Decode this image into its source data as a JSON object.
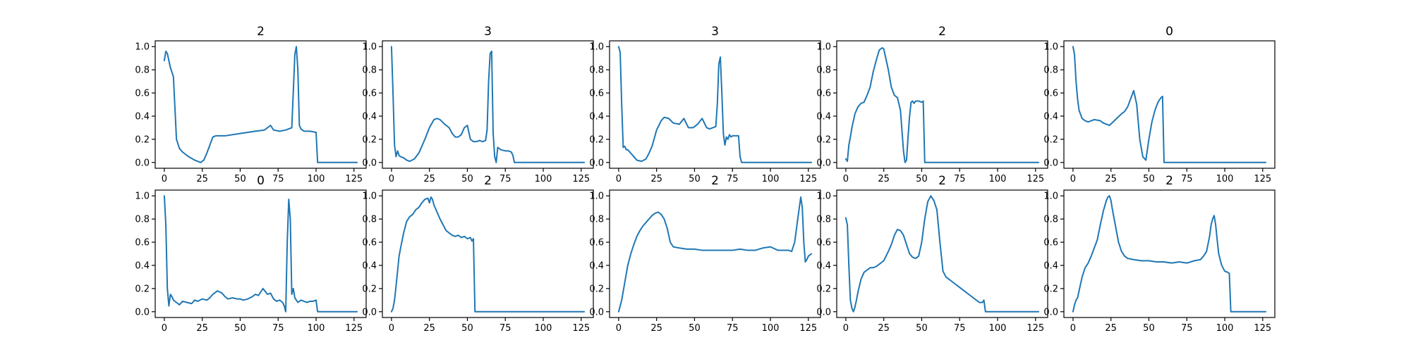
{
  "figure": {
    "line_color": "#1f77b4"
  },
  "chart_data": [
    {
      "type": "line",
      "title": "2",
      "xlim": [
        -6,
        133
      ],
      "ylim": [
        -0.05,
        1.05
      ],
      "xticks": [
        0,
        25,
        50,
        75,
        100,
        125
      ],
      "yticks": [
        0.0,
        0.2,
        0.4,
        0.6,
        0.8,
        1.0
      ],
      "x": [
        0,
        1,
        2,
        4,
        6,
        8,
        10,
        12,
        14,
        16,
        20,
        24,
        26,
        28,
        30,
        32,
        34,
        40,
        50,
        60,
        66,
        70,
        72,
        76,
        80,
        84,
        86,
        87,
        88,
        89,
        90,
        92,
        96,
        100,
        101,
        102,
        127
      ],
      "y": [
        0.88,
        0.96,
        0.94,
        0.82,
        0.74,
        0.2,
        0.12,
        0.09,
        0.07,
        0.05,
        0.02,
        0.0,
        0.02,
        0.08,
        0.15,
        0.22,
        0.23,
        0.23,
        0.25,
        0.27,
        0.28,
        0.32,
        0.28,
        0.27,
        0.28,
        0.3,
        0.93,
        1.0,
        0.8,
        0.32,
        0.29,
        0.27,
        0.27,
        0.26,
        0.0,
        0.0,
        0.0
      ]
    },
    {
      "type": "line",
      "title": "3",
      "xlim": [
        -6,
        133
      ],
      "ylim": [
        -0.05,
        1.05
      ],
      "xticks": [
        0,
        25,
        50,
        75,
        100,
        125
      ],
      "yticks": [
        0.0,
        0.2,
        0.4,
        0.6,
        0.8,
        1.0
      ],
      "x": [
        0,
        1,
        2,
        3,
        4,
        5,
        6,
        8,
        10,
        12,
        15,
        18,
        20,
        22,
        25,
        28,
        30,
        32,
        35,
        38,
        40,
        42,
        44,
        46,
        48,
        50,
        52,
        54,
        56,
        58,
        60,
        62,
        63,
        64,
        65,
        66,
        67,
        68,
        69,
        70,
        72,
        75,
        77,
        79,
        80,
        81,
        127
      ],
      "y": [
        1.0,
        0.6,
        0.15,
        0.05,
        0.1,
        0.06,
        0.05,
        0.04,
        0.02,
        0.01,
        0.03,
        0.08,
        0.14,
        0.2,
        0.3,
        0.37,
        0.38,
        0.37,
        0.33,
        0.3,
        0.25,
        0.22,
        0.22,
        0.24,
        0.3,
        0.32,
        0.2,
        0.18,
        0.18,
        0.19,
        0.18,
        0.19,
        0.28,
        0.7,
        0.94,
        0.96,
        0.25,
        0.05,
        0.0,
        0.13,
        0.11,
        0.1,
        0.1,
        0.09,
        0.06,
        0.0,
        0.0
      ]
    },
    {
      "type": "line",
      "title": "3",
      "xlim": [
        -6,
        133
      ],
      "ylim": [
        -0.05,
        1.05
      ],
      "xticks": [
        0,
        25,
        50,
        75,
        100,
        125
      ],
      "yticks": [
        0.0,
        0.2,
        0.4,
        0.6,
        0.8,
        1.0
      ],
      "x": [
        0,
        1,
        2,
        3,
        4,
        5,
        6,
        8,
        10,
        12,
        15,
        18,
        20,
        22,
        25,
        28,
        30,
        33,
        36,
        40,
        43,
        46,
        49,
        52,
        55,
        58,
        60,
        62,
        64,
        65,
        66,
        67,
        68,
        69,
        70,
        71,
        72,
        73,
        74,
        75,
        76,
        79,
        80,
        81,
        127
      ],
      "y": [
        1.0,
        0.95,
        0.5,
        0.13,
        0.14,
        0.11,
        0.11,
        0.08,
        0.05,
        0.02,
        0.01,
        0.03,
        0.08,
        0.14,
        0.28,
        0.36,
        0.39,
        0.38,
        0.34,
        0.33,
        0.38,
        0.3,
        0.3,
        0.33,
        0.38,
        0.3,
        0.29,
        0.3,
        0.31,
        0.5,
        0.85,
        0.91,
        0.6,
        0.25,
        0.15,
        0.22,
        0.2,
        0.24,
        0.22,
        0.23,
        0.23,
        0.23,
        0.05,
        0.0,
        0.0
      ]
    },
    {
      "type": "line",
      "title": "2",
      "xlim": [
        -6,
        133
      ],
      "ylim": [
        -0.05,
        1.05
      ],
      "xticks": [
        0,
        25,
        50,
        75,
        100,
        125
      ],
      "yticks": [
        0.0,
        0.2,
        0.4,
        0.6,
        0.8,
        1.0
      ],
      "x": [
        0,
        1,
        2,
        3,
        4,
        6,
        8,
        10,
        12,
        14,
        16,
        18,
        20,
        22,
        24,
        25,
        26,
        28,
        30,
        32,
        34,
        36,
        38,
        39,
        40,
        41,
        42,
        43,
        44,
        45,
        46,
        48,
        50,
        51,
        52,
        127
      ],
      "y": [
        0.03,
        0.01,
        0.15,
        0.22,
        0.3,
        0.42,
        0.48,
        0.51,
        0.52,
        0.58,
        0.65,
        0.78,
        0.88,
        0.97,
        0.99,
        0.98,
        0.92,
        0.8,
        0.65,
        0.58,
        0.56,
        0.45,
        0.1,
        0.0,
        0.02,
        0.22,
        0.4,
        0.52,
        0.53,
        0.51,
        0.53,
        0.53,
        0.52,
        0.53,
        0.0,
        0.0
      ]
    },
    {
      "type": "line",
      "title": "0",
      "xlim": [
        -6,
        133
      ],
      "ylim": [
        -0.05,
        1.05
      ],
      "xticks": [
        0,
        25,
        50,
        75,
        100,
        125
      ],
      "yticks": [
        0.0,
        0.2,
        0.4,
        0.6,
        0.8,
        1.0
      ],
      "x": [
        0,
        1,
        2,
        3,
        4,
        6,
        8,
        10,
        14,
        18,
        20,
        24,
        28,
        32,
        34,
        36,
        38,
        40,
        42,
        43,
        44,
        46,
        48,
        50,
        52,
        54,
        56,
        58,
        59,
        60,
        127
      ],
      "y": [
        1.0,
        0.93,
        0.7,
        0.55,
        0.45,
        0.38,
        0.36,
        0.35,
        0.37,
        0.36,
        0.34,
        0.32,
        0.37,
        0.42,
        0.44,
        0.48,
        0.55,
        0.62,
        0.5,
        0.35,
        0.2,
        0.05,
        0.02,
        0.2,
        0.35,
        0.45,
        0.52,
        0.56,
        0.57,
        0.0,
        0.0
      ]
    },
    {
      "type": "line",
      "title": "0",
      "xlim": [
        -6,
        133
      ],
      "ylim": [
        -0.05,
        1.05
      ],
      "xticks": [
        0,
        25,
        50,
        75,
        100,
        125
      ],
      "yticks": [
        0.0,
        0.2,
        0.4,
        0.6,
        0.8,
        1.0
      ],
      "x": [
        0,
        1,
        2,
        3,
        4,
        5,
        6,
        8,
        10,
        12,
        15,
        18,
        20,
        22,
        25,
        28,
        30,
        32,
        35,
        38,
        40,
        42,
        45,
        48,
        50,
        52,
        55,
        58,
        60,
        62,
        65,
        68,
        70,
        72,
        74,
        76,
        78,
        79,
        80,
        81,
        82,
        83,
        84,
        85,
        86,
        88,
        90,
        92,
        94,
        96,
        98,
        100,
        101,
        102,
        127
      ],
      "y": [
        1.0,
        0.75,
        0.2,
        0.05,
        0.15,
        0.13,
        0.1,
        0.08,
        0.06,
        0.09,
        0.08,
        0.07,
        0.1,
        0.09,
        0.11,
        0.1,
        0.12,
        0.15,
        0.18,
        0.16,
        0.13,
        0.11,
        0.12,
        0.11,
        0.11,
        0.1,
        0.11,
        0.13,
        0.15,
        0.14,
        0.2,
        0.15,
        0.16,
        0.11,
        0.09,
        0.1,
        0.08,
        0.05,
        0.0,
        0.6,
        0.97,
        0.8,
        0.15,
        0.2,
        0.12,
        0.08,
        0.1,
        0.09,
        0.08,
        0.09,
        0.09,
        0.1,
        0.0,
        0.0,
        0.0
      ]
    },
    {
      "type": "line",
      "title": "2",
      "xlim": [
        -6,
        133
      ],
      "ylim": [
        -0.05,
        1.05
      ],
      "xticks": [
        0,
        25,
        50,
        75,
        100,
        125
      ],
      "yticks": [
        0.0,
        0.2,
        0.4,
        0.6,
        0.8,
        1.0
      ],
      "x": [
        0,
        1,
        2,
        3,
        4,
        5,
        6,
        8,
        10,
        12,
        14,
        16,
        18,
        20,
        22,
        24,
        25,
        26,
        27,
        28,
        30,
        32,
        34,
        36,
        38,
        40,
        42,
        44,
        46,
        48,
        50,
        52,
        53,
        54,
        55,
        127
      ],
      "y": [
        0.0,
        0.03,
        0.1,
        0.22,
        0.35,
        0.48,
        0.55,
        0.68,
        0.78,
        0.82,
        0.84,
        0.88,
        0.9,
        0.94,
        0.97,
        0.98,
        0.94,
        0.99,
        0.97,
        0.92,
        0.86,
        0.8,
        0.75,
        0.7,
        0.68,
        0.66,
        0.65,
        0.66,
        0.64,
        0.65,
        0.63,
        0.64,
        0.61,
        0.63,
        0.0,
        0.0
      ]
    },
    {
      "type": "line",
      "title": "2",
      "xlim": [
        -6,
        133
      ],
      "ylim": [
        -0.05,
        1.05
      ],
      "xticks": [
        0,
        25,
        50,
        75,
        100,
        125
      ],
      "yticks": [
        0.0,
        0.2,
        0.4,
        0.6,
        0.8,
        1.0
      ],
      "x": [
        0,
        2,
        4,
        6,
        8,
        10,
        12,
        14,
        16,
        18,
        20,
        22,
        24,
        26,
        28,
        30,
        32,
        34,
        36,
        40,
        45,
        50,
        55,
        60,
        65,
        70,
        75,
        80,
        85,
        90,
        95,
        100,
        105,
        110,
        112,
        114,
        116,
        118,
        120,
        121,
        122,
        123,
        124,
        125,
        127
      ],
      "y": [
        0.0,
        0.1,
        0.25,
        0.4,
        0.5,
        0.58,
        0.65,
        0.7,
        0.74,
        0.77,
        0.8,
        0.83,
        0.85,
        0.86,
        0.84,
        0.8,
        0.72,
        0.6,
        0.56,
        0.55,
        0.54,
        0.54,
        0.53,
        0.53,
        0.53,
        0.53,
        0.53,
        0.54,
        0.53,
        0.53,
        0.55,
        0.56,
        0.53,
        0.53,
        0.53,
        0.52,
        0.6,
        0.8,
        0.99,
        0.9,
        0.6,
        0.43,
        0.45,
        0.48,
        0.5
      ]
    },
    {
      "type": "line",
      "title": "2",
      "xlim": [
        -6,
        133
      ],
      "ylim": [
        -0.05,
        1.05
      ],
      "xticks": [
        0,
        25,
        50,
        75,
        100,
        125
      ],
      "yticks": [
        0.0,
        0.2,
        0.4,
        0.6,
        0.8,
        1.0
      ],
      "x": [
        0,
        1,
        2,
        3,
        4,
        5,
        6,
        7,
        8,
        10,
        12,
        14,
        16,
        18,
        20,
        22,
        25,
        28,
        30,
        32,
        34,
        36,
        38,
        40,
        42,
        44,
        46,
        48,
        50,
        52,
        54,
        56,
        58,
        60,
        62,
        64,
        66,
        68,
        70,
        74,
        78,
        82,
        86,
        88,
        90,
        91,
        92,
        127
      ],
      "y": [
        0.81,
        0.75,
        0.4,
        0.1,
        0.03,
        0.0,
        0.04,
        0.1,
        0.17,
        0.28,
        0.34,
        0.36,
        0.38,
        0.38,
        0.39,
        0.41,
        0.44,
        0.52,
        0.58,
        0.66,
        0.71,
        0.7,
        0.66,
        0.58,
        0.5,
        0.47,
        0.46,
        0.48,
        0.6,
        0.8,
        0.95,
        1.0,
        0.96,
        0.88,
        0.6,
        0.35,
        0.3,
        0.28,
        0.26,
        0.22,
        0.18,
        0.14,
        0.1,
        0.08,
        0.08,
        0.1,
        0.0,
        0.0
      ]
    },
    {
      "type": "line",
      "title": "2",
      "xlim": [
        -6,
        133
      ],
      "ylim": [
        -0.05,
        1.05
      ],
      "xticks": [
        0,
        25,
        50,
        75,
        100,
        125
      ],
      "yticks": [
        0.0,
        0.2,
        0.4,
        0.6,
        0.8,
        1.0
      ],
      "x": [
        0,
        1,
        2,
        3,
        4,
        6,
        8,
        10,
        12,
        14,
        16,
        18,
        20,
        22,
        23,
        24,
        25,
        26,
        28,
        30,
        32,
        34,
        36,
        40,
        45,
        50,
        55,
        60,
        65,
        70,
        75,
        80,
        84,
        86,
        88,
        90,
        91,
        92,
        93,
        94,
        95,
        96,
        98,
        100,
        102,
        103,
        104,
        127
      ],
      "y": [
        0.0,
        0.06,
        0.1,
        0.12,
        0.18,
        0.3,
        0.38,
        0.42,
        0.48,
        0.55,
        0.62,
        0.75,
        0.87,
        0.96,
        0.99,
        1.0,
        0.96,
        0.88,
        0.74,
        0.6,
        0.52,
        0.48,
        0.46,
        0.45,
        0.44,
        0.44,
        0.43,
        0.43,
        0.42,
        0.43,
        0.42,
        0.44,
        0.45,
        0.48,
        0.52,
        0.65,
        0.75,
        0.8,
        0.83,
        0.75,
        0.62,
        0.5,
        0.4,
        0.35,
        0.34,
        0.33,
        0.0,
        0.0
      ]
    }
  ]
}
